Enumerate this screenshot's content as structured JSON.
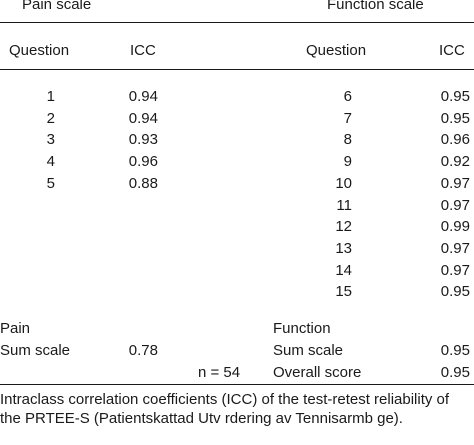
{
  "headers": {
    "pain_scale": "Pain scale",
    "function_scale": "Function scale",
    "question": "Question",
    "icc": "ICC"
  },
  "pain_rows": [
    {
      "question": "1",
      "icc": "0.94"
    },
    {
      "question": "2",
      "icc": "0.94"
    },
    {
      "question": "3",
      "icc": "0.93"
    },
    {
      "question": "4",
      "icc": "0.96"
    },
    {
      "question": "5",
      "icc": "0.88"
    }
  ],
  "function_rows": [
    {
      "question": "6",
      "icc": "0.95"
    },
    {
      "question": "7",
      "icc": "0.95"
    },
    {
      "question": "8",
      "icc": "0.96"
    },
    {
      "question": "9",
      "icc": "0.92"
    },
    {
      "question": "10",
      "icc": "0.97"
    },
    {
      "question": "11",
      "icc": "0.97"
    },
    {
      "question": "12",
      "icc": "0.99"
    },
    {
      "question": "13",
      "icc": "0.97"
    },
    {
      "question": "14",
      "icc": "0.97"
    },
    {
      "question": "15",
      "icc": "0.95"
    }
  ],
  "summary": {
    "pain_label": "Pain",
    "function_label": "Function",
    "sum_scale_label": "Sum scale",
    "pain_sum_icc": "0.78",
    "function_sum_icc": "0.95",
    "n_label": "n = 54",
    "overall_label": "Overall score",
    "overall_icc": "0.95"
  },
  "caption": "Intraclass correlation coefficients (ICC) of the test-retest reliability of the PRTEE-S (Patientskattad Utv  rdering av Tennisarmb  ge)."
}
